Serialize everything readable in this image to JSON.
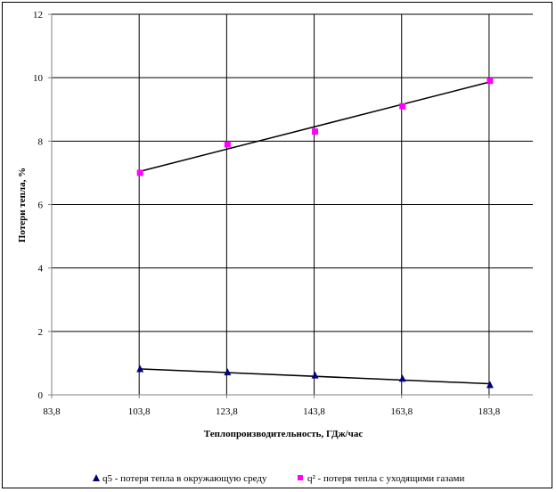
{
  "chart_data": {
    "type": "scatter",
    "xlabel": "Теплопроизводительность, ГДж/час",
    "ylabel": "Потери тепла, %",
    "xlim": [
      83.8,
      193.8
    ],
    "ylim": [
      0,
      12
    ],
    "x_ticks": [
      "83,8",
      "103,8",
      "123,8",
      "143,8",
      "163,8",
      "183,8"
    ],
    "y_ticks": [
      "0",
      "2",
      "4",
      "6",
      "8",
      "10",
      "12"
    ],
    "x_tick_values": [
      83.8,
      103.8,
      123.8,
      143.8,
      163.8,
      183.8
    ],
    "y_tick_values": [
      0,
      2,
      4,
      6,
      8,
      10,
      12
    ],
    "grid": true,
    "legend_position": "bottom",
    "series": [
      {
        "name": "q5 - потеря тепла в окружающую среду",
        "marker": "triangle",
        "color": "#000080",
        "x": [
          103.8,
          123.8,
          143.8,
          163.8,
          183.8
        ],
        "y": [
          0.8,
          0.7,
          0.6,
          0.5,
          0.3
        ],
        "trendline": [
          [
            103.8,
            0.82
          ],
          [
            183.8,
            0.35
          ]
        ]
      },
      {
        "name": "q² - потеря тепла с уходящими газами",
        "marker": "square",
        "color": "#FF00FF",
        "x": [
          103.8,
          123.8,
          143.8,
          163.8,
          183.8
        ],
        "y": [
          7.0,
          7.9,
          8.3,
          9.1,
          9.9
        ],
        "trendline": [
          [
            103.8,
            7.04
          ],
          [
            183.8,
            9.86
          ]
        ]
      }
    ]
  }
}
